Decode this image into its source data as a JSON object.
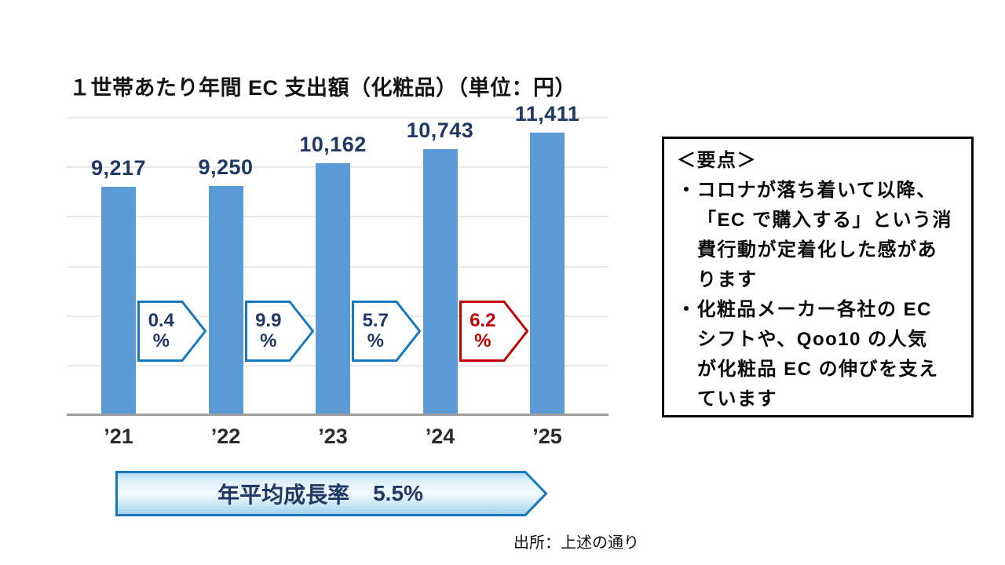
{
  "chart_data": {
    "type": "bar",
    "title": "１世帯あたり年間 EC 支出額（化粧品）（単位：円）",
    "categories": [
      "’21",
      "’22",
      "’23",
      "’24",
      "’25"
    ],
    "values": [
      9217,
      9250,
      10162,
      10743,
      11411
    ],
    "value_labels": [
      "9,217",
      "9,250",
      "10,162",
      "10,743",
      "11,411"
    ],
    "xlabel": "",
    "ylabel": "",
    "ylim": [
      0,
      12000
    ],
    "gridline_step": 2000,
    "grid": true,
    "legend": "none",
    "yoy_growth_percent": [
      0.4,
      9.9,
      5.7,
      6.2
    ],
    "cagr_percent": 5.5
  },
  "colors": {
    "bar": "#5b9bd5",
    "value_label": "#1f3864",
    "gridline": "#e8e8e8",
    "axis_line": "#9e9e9e",
    "arrow_blue": "#1778c2",
    "arrow_red": "#c00000",
    "banner_border": "#1778c2",
    "banner_text": "#1f3864"
  },
  "growth_arrows": [
    {
      "label": "0.4",
      "unit": "%",
      "stroke": "#1778c2",
      "text_color": "#1f3864"
    },
    {
      "label": "9.9",
      "unit": "%",
      "stroke": "#1778c2",
      "text_color": "#1f3864"
    },
    {
      "label": "5.7",
      "unit": "%",
      "stroke": "#1778c2",
      "text_color": "#1f3864"
    },
    {
      "label": "6.2",
      "unit": "%",
      "stroke": "#c00000",
      "text_color": "#c00000"
    }
  ],
  "cagr_banner": {
    "label": "年平均成長率",
    "value": "5.5%"
  },
  "key_points": {
    "heading": "＜要点＞",
    "bullets": [
      {
        "lines": [
          "コロナが落ち着いて以降、",
          "「EC で購入する」という消",
          "費行動が定着化した感があ",
          "ります"
        ]
      },
      {
        "lines": [
          "化粧品メーカー各社の EC",
          "シフトや、Qoo10 の人気",
          "が化粧品 EC の伸びを支え",
          "ています"
        ]
      }
    ]
  },
  "source": {
    "text": "出所：上述の通り"
  }
}
